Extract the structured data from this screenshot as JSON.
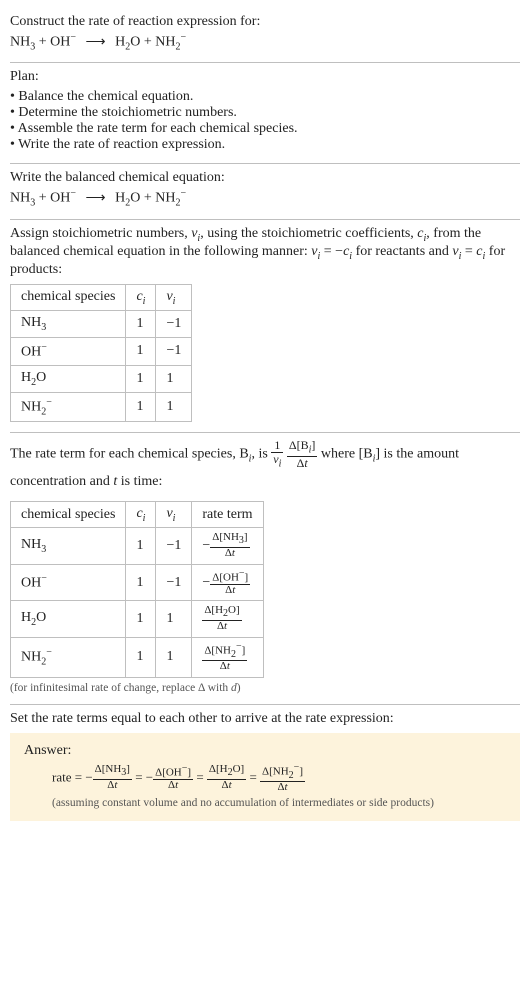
{
  "title": "Construct the rate of reaction expression for:",
  "equation_html": "NH<span class='sub'>3</span> + OH<span class='sup'>−</span> <span class='arrow'>⟶</span> H<span class='sub'>2</span>O + NH<span class='sub'>2</span><span class='sup'>−</span>",
  "plan_label": "Plan:",
  "plan_items": [
    "Balance the chemical equation.",
    "Determine the stoichiometric numbers.",
    "Assemble the rate term for each chemical species.",
    "Write the rate of reaction expression."
  ],
  "balanced_label": "Write the balanced chemical equation:",
  "stoich_text_1": "Assign stoichiometric numbers, <span class='ital'>ν<span class='sub'>i</span></span>, using the stoichiometric coefficients, <span class='ital'>c<span class='sub'>i</span></span>, from the balanced chemical equation in the following manner: <span class='ital'>ν<span class='sub'>i</span></span> = −<span class='ital'>c<span class='sub'>i</span></span> for reactants and <span class='ital'>ν<span class='sub'>i</span></span> = <span class='ital'>c<span class='sub'>i</span></span> for products:",
  "table1": {
    "headers": [
      "chemical species",
      "<span class='ital'>c<span class='sub'>i</span></span>",
      "<span class='ital'>ν<span class='sub'>i</span></span>"
    ],
    "rows": [
      [
        "NH<span class='sub'>3</span>",
        "1",
        "−1"
      ],
      [
        "OH<span class='sup'>−</span>",
        "1",
        "−1"
      ],
      [
        "H<span class='sub'>2</span>O",
        "1",
        "1"
      ],
      [
        "NH<span class='sub'>2</span><span class='sup'>−</span>",
        "1",
        "1"
      ]
    ]
  },
  "rate_term_text_html": "The rate term for each chemical species, B<span class='sub ital'>i</span>, is <span class='frac'><span class='num'>1</span><span class='den ital'>ν<span class='sub'>i</span></span></span> <span class='frac'><span class='num'>Δ[B<span class='sub ital'>i</span>]</span><span class='den'>Δ<span class='ital'>t</span></span></span> where [B<span class='sub ital'>i</span>] is the amount concentration and <span class='ital'>t</span> is time:",
  "table2": {
    "headers": [
      "chemical species",
      "<span class='ital'>c<span class='sub'>i</span></span>",
      "<span class='ital'>ν<span class='sub'>i</span></span>",
      "rate term"
    ],
    "rows": [
      [
        "NH<span class='sub'>3</span>",
        "1",
        "−1",
        "−<span class='frac smallfrac'><span class='num'>Δ[NH<span class='sub'>3</span>]</span><span class='den'>Δ<span class='ital'>t</span></span></span>"
      ],
      [
        "OH<span class='sup'>−</span>",
        "1",
        "−1",
        "−<span class='frac smallfrac'><span class='num'>Δ[OH<span class='sup'>−</span>]</span><span class='den'>Δ<span class='ital'>t</span></span></span>"
      ],
      [
        "H<span class='sub'>2</span>O",
        "1",
        "1",
        "<span class='frac smallfrac'><span class='num'>Δ[H<span class='sub'>2</span>O]</span><span class='den'>Δ<span class='ital'>t</span></span></span>"
      ],
      [
        "NH<span class='sub'>2</span><span class='sup'>−</span>",
        "1",
        "1",
        "<span class='frac smallfrac'><span class='num'>Δ[NH<span class='sub'>2</span><span class='sup'>−</span>]</span><span class='den'>Δ<span class='ital'>t</span></span></span>"
      ]
    ]
  },
  "infinitesimal_note": "(for infinitesimal rate of change, replace Δ with <span class='ital'>d</span>)",
  "set_equal_text": "Set the rate terms equal to each other to arrive at the rate expression:",
  "answer_label": "Answer:",
  "answer_expr_html": "rate = −<span class='frac smallfrac'><span class='num'>Δ[NH<span class='sub'>3</span>]</span><span class='den'>Δ<span class='ital'>t</span></span></span> = −<span class='frac smallfrac'><span class='num'>Δ[OH<span class='sup'>−</span>]</span><span class='den'>Δ<span class='ital'>t</span></span></span> = <span class='frac smallfrac'><span class='num'>Δ[H<span class='sub'>2</span>O]</span><span class='den'>Δ<span class='ital'>t</span></span></span> = <span class='frac smallfrac'><span class='num'>Δ[NH<span class='sub'>2</span><span class='sup'>−</span>]</span><span class='den'>Δ<span class='ital'>t</span></span></span>",
  "answer_note": "(assuming constant volume and no accumulation of intermediates or side products)",
  "colors": {
    "rule": "#bfbfbf",
    "text": "#222222",
    "caption": "#555555",
    "answer_bg": "#fdf3dc"
  }
}
